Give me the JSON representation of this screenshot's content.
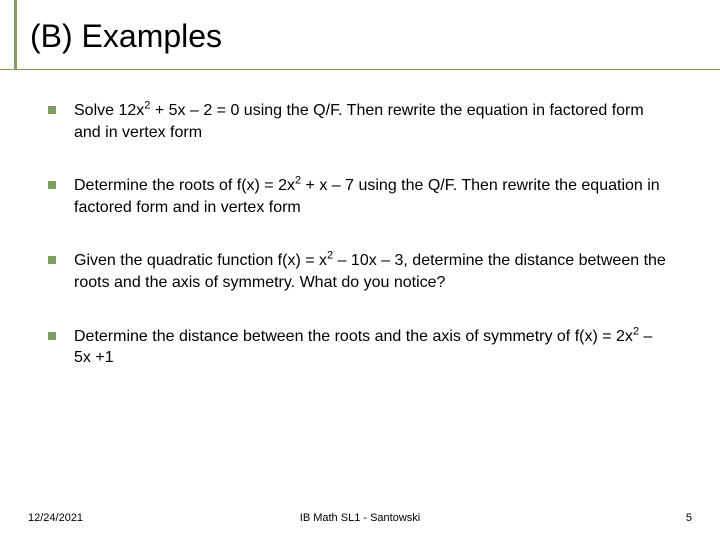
{
  "title": "(B) Examples",
  "bullets": [
    {
      "html": "Solve 12x<sup>2</sup> + 5x – 2 = 0 using the Q/F. Then rewrite the equation in factored form and in vertex form"
    },
    {
      "html": "Determine the roots of f(x) = 2x<sup>2</sup> + x – 7 using the Q/F. Then rewrite the equation in factored form and in vertex form"
    },
    {
      "html": "Given the quadratic function f(x) = x<sup>2</sup> – 10x – 3, determine the distance between the roots and the axis of symmetry. What do you notice?"
    },
    {
      "html": "Determine the distance between the roots and the axis of symmetry of f(x) = 2x<sup>2</sup> – 5x +1"
    }
  ],
  "footer": {
    "date": "12/24/2021",
    "center": "IB Math SL1 - Santowski",
    "page": "5"
  },
  "colors": {
    "accent": "#7f9f60",
    "text": "#000000",
    "background": "#ffffff"
  }
}
